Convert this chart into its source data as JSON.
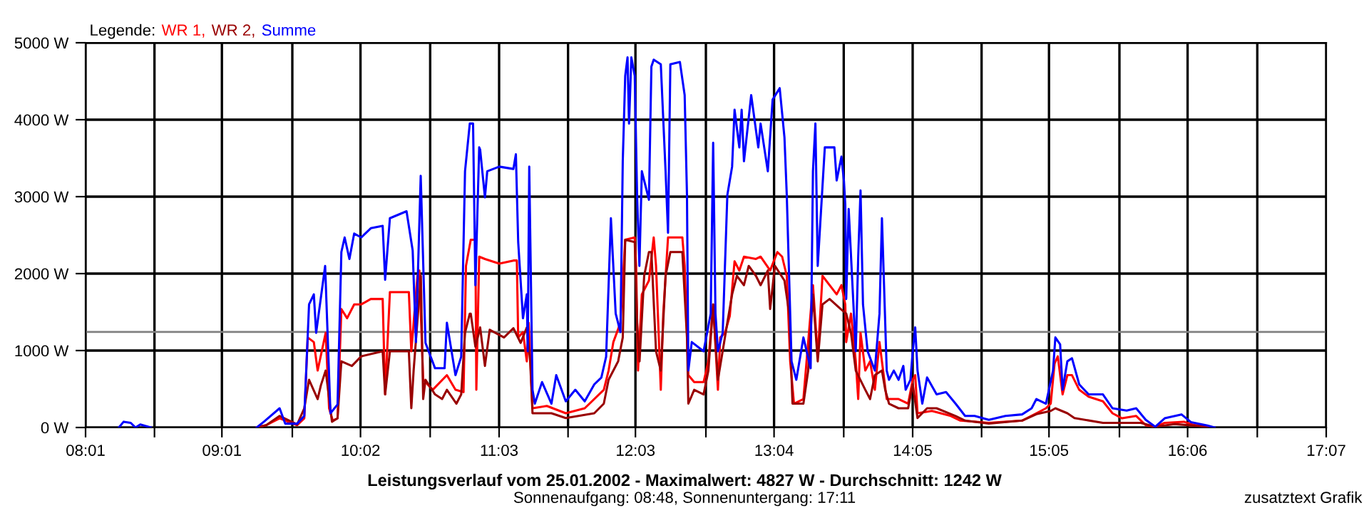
{
  "chart_data": {
    "type": "line",
    "title": "Leistungsverlauf vom 25.01.2002 - Maximalwert: 4827 W - Durchschnitt: 1242 W",
    "subtitle": "Sonnenaufgang: 08:48, Sonnenuntergang: 17:11",
    "legend_title": "Legende:",
    "annotations": [
      "zusatztext Grafik"
    ],
    "xlim": [
      8.0167,
      17.1167
    ],
    "xticks": [
      {
        "value": 8.0167,
        "label": "08:01"
      },
      {
        "value": 8.5222,
        "label": null
      },
      {
        "value": 9.0167,
        "label": "09:01"
      },
      {
        "value": 9.5333,
        "label": null
      },
      {
        "value": 10.0333,
        "label": "10:02"
      },
      {
        "value": 10.5444,
        "label": null
      },
      {
        "value": 11.05,
        "label": "11:03"
      },
      {
        "value": 11.5556,
        "label": null
      },
      {
        "value": 12.05,
        "label": "12:03"
      },
      {
        "value": 12.5667,
        "label": null
      },
      {
        "value": 13.0667,
        "label": "13:04"
      },
      {
        "value": 13.5778,
        "label": null
      },
      {
        "value": 14.0833,
        "label": "14:05"
      },
      {
        "value": 14.5889,
        "label": null
      },
      {
        "value": 15.0833,
        "label": "15:05"
      },
      {
        "value": 15.6,
        "label": null
      },
      {
        "value": 16.1,
        "label": "16:06"
      },
      {
        "value": 16.6111,
        "label": null
      },
      {
        "value": 17.1167,
        "label": "17:07"
      }
    ],
    "ylim": [
      0,
      5000
    ],
    "yticks": [
      {
        "value": 0,
        "label": "0 W"
      },
      {
        "value": 1000,
        "label": "1000 W"
      },
      {
        "value": 2000,
        "label": "2000 W"
      },
      {
        "value": 3000,
        "label": "3000 W"
      },
      {
        "value": 4000,
        "label": "4000 W"
      },
      {
        "value": 5000,
        "label": "5000 W"
      }
    ],
    "grid": true,
    "legend": "top left",
    "ref_lines": [
      {
        "axis": "y",
        "value": 1242,
        "color": "#808080"
      }
    ],
    "series": [
      {
        "name": "WR 1,",
        "color": "#ff0000",
        "x": [
          9.272,
          9.342,
          9.44,
          9.569,
          9.621,
          9.646,
          9.691,
          9.719,
          9.778,
          9.803,
          9.83,
          9.865,
          9.893,
          9.935,
          9.987,
          10.039,
          10.109,
          10.196,
          10.214,
          10.249,
          10.388,
          10.406,
          10.451,
          10.465,
          10.493,
          10.563,
          10.667,
          10.73,
          10.789,
          10.807,
          10.842,
          10.876,
          10.883,
          10.904,
          10.946,
          11.051,
          11.155,
          11.18,
          11.19,
          11.225,
          11.253,
          11.267,
          11.295,
          11.4,
          11.539,
          11.678,
          11.818,
          11.853,
          11.888,
          11.94,
          11.975,
          12.045,
          12.055,
          12.069,
          12.097,
          12.149,
          12.184,
          12.201,
          12.236,
          12.254,
          12.289,
          12.394,
          12.411,
          12.428,
          12.438,
          12.481,
          12.55,
          12.585,
          12.62,
          12.655,
          12.672,
          12.707,
          12.742,
          12.777,
          12.812,
          12.846,
          12.934,
          12.968,
          13.038,
          13.091,
          13.126,
          13.16,
          13.185,
          13.213,
          13.282,
          13.352,
          13.387,
          13.422,
          13.526,
          13.561,
          13.589,
          13.596,
          13.631,
          13.666,
          13.684,
          13.701,
          13.736,
          13.771,
          13.806,
          13.84,
          13.893,
          13.98,
          14.05,
          14.084,
          14.102,
          14.119,
          14.224,
          14.363,
          14.433,
          14.642,
          14.886,
          14.991,
          15.061,
          15.096,
          15.124,
          15.148,
          15.183,
          15.218,
          15.252,
          15.305,
          15.374,
          15.479,
          15.549,
          15.619,
          15.723,
          15.793,
          15.863,
          15.932,
          16.072,
          16.142,
          16.246,
          16.281
        ],
        "values": [
          0,
          30,
          120,
          30,
          120,
          1170,
          1110,
          740,
          1230,
          250,
          90,
          120,
          1540,
          1420,
          1600,
          1600,
          1670,
          1670,
          430,
          1760,
          1760,
          990,
          1970,
          2040,
          620,
          490,
          680,
          490,
          460,
          2100,
          2440,
          2440,
          490,
          2220,
          2190,
          2130,
          2170,
          2170,
          1170,
          1240,
          860,
          1360,
          250,
          280,
          185,
          250,
          490,
          740,
          1110,
          1360,
          2440,
          2470,
          2100,
          740,
          1730,
          1910,
          2470,
          2100,
          490,
          1480,
          2470,
          2470,
          2100,
          1230,
          680,
          590,
          590,
          860,
          1600,
          490,
          1170,
          1230,
          1450,
          2160,
          2040,
          2220,
          2190,
          2220,
          2040,
          2280,
          2220,
          1970,
          860,
          310,
          370,
          1850,
          920,
          1970,
          1730,
          1850,
          1600,
          1110,
          1480,
          860,
          370,
          1230,
          740,
          860,
          490,
          1110,
          370,
          370,
          310,
          620,
          680,
          185,
          215,
          150,
          90,
          60,
          90,
          185,
          250,
          310,
          830,
          925,
          430,
          680,
          680,
          490,
          400,
          340,
          185,
          120,
          150,
          30,
          10,
          60,
          75,
          35,
          10,
          0
        ]
      },
      {
        "name": "WR 2,",
        "color": "#990000",
        "x": [
          9.272,
          9.342,
          9.44,
          9.569,
          9.621,
          9.656,
          9.719,
          9.743,
          9.778,
          9.824,
          9.865,
          9.893,
          9.97,
          10.039,
          10.196,
          10.214,
          10.249,
          10.388,
          10.406,
          10.423,
          10.476,
          10.493,
          10.51,
          10.58,
          10.632,
          10.667,
          10.737,
          10.772,
          10.8,
          10.835,
          10.842,
          10.876,
          10.911,
          10.946,
          10.981,
          11.086,
          11.155,
          11.208,
          11.253,
          11.278,
          11.295,
          11.434,
          11.539,
          11.748,
          11.818,
          11.853,
          11.923,
          11.957,
          11.975,
          12.045,
          12.062,
          12.08,
          12.114,
          12.149,
          12.167,
          12.201,
          12.236,
          12.271,
          12.306,
          12.394,
          12.428,
          12.438,
          12.481,
          12.55,
          12.585,
          12.62,
          12.655,
          12.724,
          12.759,
          12.794,
          12.846,
          12.881,
          12.934,
          12.968,
          13.021,
          13.038,
          13.073,
          13.143,
          13.178,
          13.202,
          13.282,
          13.317,
          13.352,
          13.387,
          13.422,
          13.474,
          13.555,
          13.596,
          13.631,
          13.666,
          13.736,
          13.771,
          13.806,
          13.858,
          13.882,
          13.91,
          13.98,
          14.05,
          14.084,
          14.119,
          14.189,
          14.259,
          14.398,
          14.468,
          14.642,
          14.886,
          14.991,
          15.096,
          15.13,
          15.218,
          15.27,
          15.479,
          15.757,
          15.863,
          16.002,
          16.246,
          16.281
        ],
        "values": [
          0,
          30,
          150,
          40,
          250,
          620,
          370,
          550,
          740,
          75,
          120,
          860,
          800,
          925,
          990,
          430,
          990,
          990,
          250,
          740,
          1970,
          370,
          620,
          430,
          370,
          490,
          310,
          430,
          1230,
          1480,
          1480,
          1050,
          1300,
          800,
          1270,
          1170,
          1290,
          1100,
          1300,
          860,
          185,
          185,
          123,
          185,
          310,
          620,
          860,
          1170,
          2440,
          2410,
          1360,
          860,
          1970,
          2280,
          2280,
          990,
          740,
          1970,
          2280,
          2280,
          1170,
          310,
          490,
          430,
          740,
          1600,
          620,
          1360,
          1730,
          1970,
          1850,
          2100,
          1970,
          1850,
          2040,
          1540,
          2100,
          1910,
          1480,
          310,
          310,
          740,
          1730,
          860,
          1600,
          1670,
          1540,
          1480,
          1230,
          740,
          490,
          370,
          680,
          740,
          490,
          310,
          250,
          250,
          560,
          123,
          250,
          250,
          150,
          90,
          50,
          90,
          173,
          215,
          250,
          185,
          123,
          60,
          60,
          10,
          45,
          10,
          0
        ]
      },
      {
        "name": "Summe",
        "color": "#0000ff",
        "x": [
          8.261,
          8.296,
          8.348,
          8.383,
          8.418,
          8.495,
          8.9,
          9.272,
          9.325,
          9.44,
          9.481,
          9.569,
          9.621,
          9.656,
          9.691,
          9.708,
          9.774,
          9.813,
          9.865,
          9.893,
          9.917,
          9.952,
          9.987,
          10.039,
          10.109,
          10.196,
          10.214,
          10.249,
          10.371,
          10.416,
          10.44,
          10.475,
          10.51,
          10.58,
          10.65,
          10.667,
          10.73,
          10.772,
          10.8,
          10.835,
          10.859,
          10.876,
          10.904,
          10.911,
          10.946,
          10.963,
          11.051,
          11.155,
          11.173,
          11.19,
          11.225,
          11.253,
          11.26,
          11.271,
          11.295,
          11.312,
          11.365,
          11.434,
          11.469,
          11.539,
          11.609,
          11.678,
          11.748,
          11.8,
          11.835,
          11.87,
          11.905,
          11.94,
          11.957,
          11.975,
          11.992,
          12.003,
          12.02,
          12.045,
          12.062,
          12.079,
          12.097,
          12.149,
          12.167,
          12.184,
          12.236,
          12.271,
          12.289,
          12.306,
          12.376,
          12.411,
          12.428,
          12.438,
          12.463,
          12.55,
          12.602,
          12.62,
          12.637,
          12.655,
          12.69,
          12.724,
          12.759,
          12.777,
          12.812,
          12.829,
          12.846,
          12.899,
          12.951,
          12.968,
          13.021,
          13.056,
          13.108,
          13.143,
          13.16,
          13.195,
          13.23,
          13.282,
          13.335,
          13.352,
          13.37,
          13.387,
          13.439,
          13.509,
          13.526,
          13.561,
          13.579,
          13.589,
          13.596,
          13.614,
          13.666,
          13.684,
          13.701,
          13.719,
          13.753,
          13.806,
          13.84,
          13.858,
          13.893,
          13.91,
          13.945,
          13.98,
          14.015,
          14.032,
          14.067,
          14.084,
          14.102,
          14.119,
          14.154,
          14.189,
          14.259,
          14.328,
          14.398,
          14.468,
          14.538,
          14.642,
          14.764,
          14.886,
          14.956,
          14.991,
          15.061,
          15.113,
          15.13,
          15.165,
          15.183,
          15.218,
          15.252,
          15.305,
          15.374,
          15.479,
          15.549,
          15.653,
          15.723,
          15.793,
          15.863,
          15.932,
          16.055,
          16.124,
          16.246,
          16.299
        ],
        "values": [
          0,
          75,
          60,
          0,
          40,
          0,
          null,
          0,
          75,
          250,
          50,
          50,
          150,
          1600,
          1730,
          1230,
          2100,
          185,
          300,
          2280,
          2470,
          2190,
          2520,
          2470,
          2590,
          2620,
          1920,
          2720,
          2810,
          2300,
          1110,
          3270,
          1100,
          770,
          770,
          1360,
          680,
          920,
          3330,
          3950,
          3950,
          1850,
          3640,
          3610,
          2990,
          3330,
          3390,
          3360,
          3550,
          2410,
          1420,
          1730,
          990,
          3390,
          490,
          310,
          590,
          310,
          680,
          340,
          490,
          340,
          560,
          650,
          920,
          2720,
          1480,
          1240,
          3460,
          4570,
          4810,
          3950,
          4810,
          4570,
          3020,
          2100,
          3330,
          2960,
          4690,
          4780,
          4720,
          3330,
          2530,
          4720,
          4750,
          4320,
          3020,
          740,
          1110,
          990,
          1480,
          3700,
          1480,
          990,
          1230,
          3020,
          3390,
          4130,
          3640,
          4130,
          3460,
          4320,
          3640,
          3950,
          3330,
          4260,
          4410,
          3770,
          3020,
          860,
          620,
          1170,
          770,
          3330,
          3950,
          2100,
          3640,
          3640,
          3210,
          3520,
          3210,
          2900,
          1670,
          2840,
          990,
          2220,
          3080,
          1600,
          990,
          740,
          1480,
          2720,
          740,
          620,
          740,
          620,
          800,
          490,
          620,
          990,
          1300,
          740,
          310,
          650,
          430,
          460,
          310,
          150,
          150,
          100,
          150,
          170,
          250,
          370,
          310,
          740,
          1170,
          1080,
          490,
          860,
          900,
          560,
          430,
          430,
          250,
          220,
          250,
          100,
          10,
          120,
          170,
          70,
          25,
          0
        ]
      }
    ]
  }
}
